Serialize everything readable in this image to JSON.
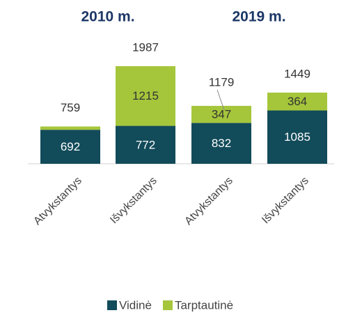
{
  "chart_data": {
    "type": "stacked-bar",
    "group_titles": [
      "2010 m.",
      "2019 m."
    ],
    "categories": [
      "Atvykstantys",
      "Išvykstantys",
      "Atvykstantys",
      "Išvykstantys"
    ],
    "series": [
      {
        "name": "Vidinė",
        "color": "#124b5a",
        "values": [
          692,
          772,
          832,
          1085
        ]
      },
      {
        "name": "Tarptautinė",
        "color": "#a5c63b",
        "values": [
          67,
          1215,
          347,
          364
        ]
      }
    ],
    "totals": [
      759,
      1987,
      1179,
      1449
    ],
    "ylim": [
      0,
      2000
    ],
    "legend": "bottom"
  }
}
